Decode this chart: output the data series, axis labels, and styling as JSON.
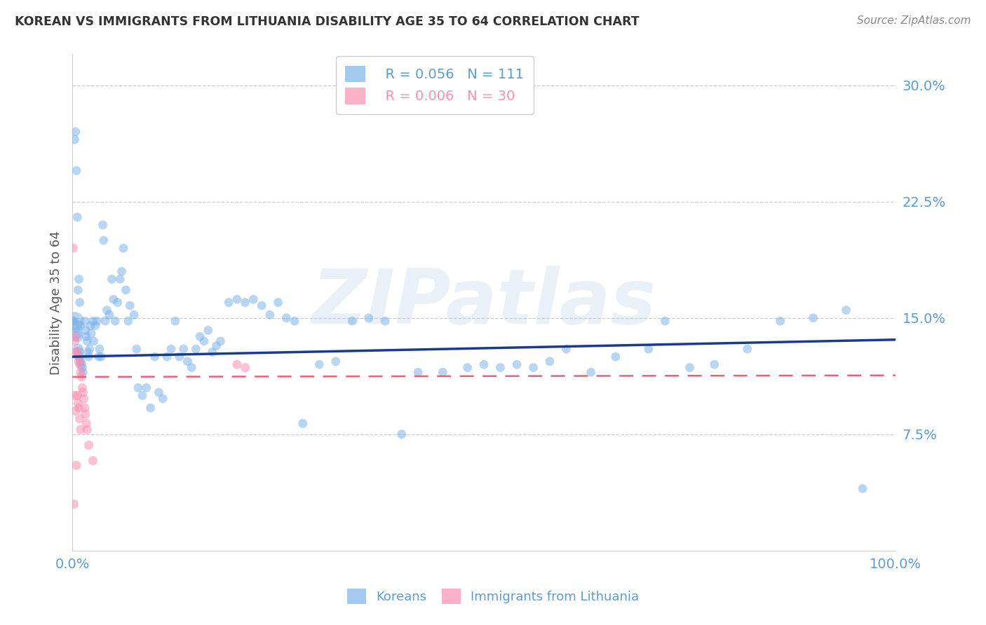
{
  "title": "KOREAN VS IMMIGRANTS FROM LITHUANIA DISABILITY AGE 35 TO 64 CORRELATION CHART",
  "source": "Source: ZipAtlas.com",
  "ylabel": "Disability Age 35 to 64",
  "xlim": [
    0.0,
    1.0
  ],
  "ylim": [
    0.0,
    0.32
  ],
  "yticks": [
    0.075,
    0.15,
    0.225,
    0.3
  ],
  "ytick_labels": [
    "7.5%",
    "15.0%",
    "22.5%",
    "30.0%"
  ],
  "xticks": [
    0.0,
    0.25,
    0.5,
    0.75,
    1.0
  ],
  "xtick_labels": [
    "0.0%",
    "",
    "",
    "",
    "100.0%"
  ],
  "korean_color": "#7EB3E8",
  "lithuania_color": "#F890B0",
  "korean_line_color": "#1A3A8F",
  "lithuania_line_color": "#E8607A",
  "legend_R_korean": "R = 0.056",
  "legend_N_korean": "N = 111",
  "legend_R_lithuania": "R = 0.006",
  "legend_N_lithuania": "N = 30",
  "watermark": "ZIPatlas",
  "korean_x": [
    0.003,
    0.004,
    0.005,
    0.006,
    0.007,
    0.008,
    0.009,
    0.01,
    0.011,
    0.012,
    0.013,
    0.015,
    0.016,
    0.017,
    0.018,
    0.019,
    0.02,
    0.021,
    0.022,
    0.023,
    0.025,
    0.026,
    0.028,
    0.03,
    0.032,
    0.033,
    0.035,
    0.037,
    0.038,
    0.04,
    0.042,
    0.045,
    0.048,
    0.05,
    0.052,
    0.055,
    0.058,
    0.06,
    0.062,
    0.065,
    0.068,
    0.07,
    0.075,
    0.078,
    0.08,
    0.085,
    0.09,
    0.095,
    0.1,
    0.105,
    0.11,
    0.115,
    0.12,
    0.125,
    0.13,
    0.135,
    0.14,
    0.145,
    0.15,
    0.155,
    0.16,
    0.165,
    0.17,
    0.175,
    0.18,
    0.19,
    0.2,
    0.21,
    0.22,
    0.23,
    0.24,
    0.25,
    0.26,
    0.27,
    0.28,
    0.3,
    0.32,
    0.34,
    0.36,
    0.38,
    0.4,
    0.42,
    0.45,
    0.48,
    0.5,
    0.52,
    0.54,
    0.56,
    0.58,
    0.6,
    0.63,
    0.66,
    0.7,
    0.72,
    0.75,
    0.78,
    0.82,
    0.86,
    0.9,
    0.94,
    0.002,
    0.001,
    0.96,
    0.003,
    0.004,
    0.005,
    0.006,
    0.007,
    0.008,
    0.009,
    0.01
  ],
  "korean_y": [
    0.148,
    0.145,
    0.14,
    0.138,
    0.13,
    0.128,
    0.125,
    0.122,
    0.12,
    0.118,
    0.115,
    0.148,
    0.142,
    0.138,
    0.135,
    0.128,
    0.125,
    0.13,
    0.145,
    0.14,
    0.148,
    0.135,
    0.145,
    0.148,
    0.125,
    0.13,
    0.125,
    0.21,
    0.2,
    0.148,
    0.155,
    0.152,
    0.175,
    0.162,
    0.148,
    0.16,
    0.175,
    0.18,
    0.195,
    0.168,
    0.148,
    0.158,
    0.152,
    0.13,
    0.105,
    0.1,
    0.105,
    0.092,
    0.125,
    0.102,
    0.098,
    0.125,
    0.13,
    0.148,
    0.125,
    0.13,
    0.122,
    0.118,
    0.13,
    0.138,
    0.135,
    0.142,
    0.128,
    0.132,
    0.135,
    0.16,
    0.162,
    0.16,
    0.162,
    0.158,
    0.152,
    0.16,
    0.15,
    0.148,
    0.082,
    0.12,
    0.122,
    0.148,
    0.15,
    0.148,
    0.075,
    0.115,
    0.115,
    0.118,
    0.12,
    0.118,
    0.12,
    0.118,
    0.122,
    0.13,
    0.115,
    0.125,
    0.13,
    0.148,
    0.118,
    0.12,
    0.13,
    0.148,
    0.15,
    0.155,
    0.148,
    0.148,
    0.04,
    0.265,
    0.27,
    0.245,
    0.215,
    0.168,
    0.175,
    0.16,
    0.145
  ],
  "korean_sizes": [
    350,
    200,
    160,
    140,
    120,
    110,
    100,
    100,
    95,
    90,
    85,
    85,
    85,
    85,
    85,
    85,
    85,
    85,
    85,
    85,
    85,
    85,
    85,
    85,
    85,
    85,
    85,
    85,
    85,
    85,
    85,
    85,
    85,
    85,
    85,
    85,
    85,
    85,
    85,
    85,
    85,
    85,
    85,
    85,
    85,
    85,
    85,
    85,
    85,
    85,
    85,
    85,
    85,
    85,
    85,
    85,
    85,
    85,
    85,
    85,
    85,
    85,
    85,
    85,
    85,
    85,
    85,
    85,
    85,
    85,
    85,
    85,
    85,
    85,
    85,
    85,
    85,
    85,
    85,
    85,
    85,
    85,
    85,
    85,
    85,
    85,
    85,
    85,
    85,
    85,
    85,
    85,
    85,
    85,
    85,
    85,
    85,
    85,
    85,
    85,
    85,
    85,
    85,
    85,
    85,
    85,
    85,
    85,
    85,
    85,
    85
  ],
  "lithuania_x": [
    0.001,
    0.002,
    0.003,
    0.003,
    0.004,
    0.004,
    0.005,
    0.005,
    0.006,
    0.006,
    0.007,
    0.007,
    0.008,
    0.008,
    0.009,
    0.009,
    0.01,
    0.01,
    0.011,
    0.012,
    0.013,
    0.014,
    0.015,
    0.016,
    0.017,
    0.018,
    0.02,
    0.025,
    0.2,
    0.21
  ],
  "lithuania_y": [
    0.195,
    0.03,
    0.135,
    0.1,
    0.138,
    0.09,
    0.128,
    0.055,
    0.128,
    0.1,
    0.125,
    0.095,
    0.122,
    0.092,
    0.12,
    0.085,
    0.115,
    0.078,
    0.112,
    0.105,
    0.102,
    0.098,
    0.092,
    0.088,
    0.082,
    0.078,
    0.068,
    0.058,
    0.12,
    0.118
  ],
  "korea_trend_y_start": 0.125,
  "korea_trend_y_end": 0.136,
  "lithuania_trend_y_start": 0.112,
  "lithuania_trend_y_end": 0.113,
  "background_color": "#ffffff",
  "grid_color": "#cccccc",
  "title_color": "#333333",
  "axis_label_color": "#555555",
  "tick_color": "#5B9BD5",
  "source_color": "#888888"
}
